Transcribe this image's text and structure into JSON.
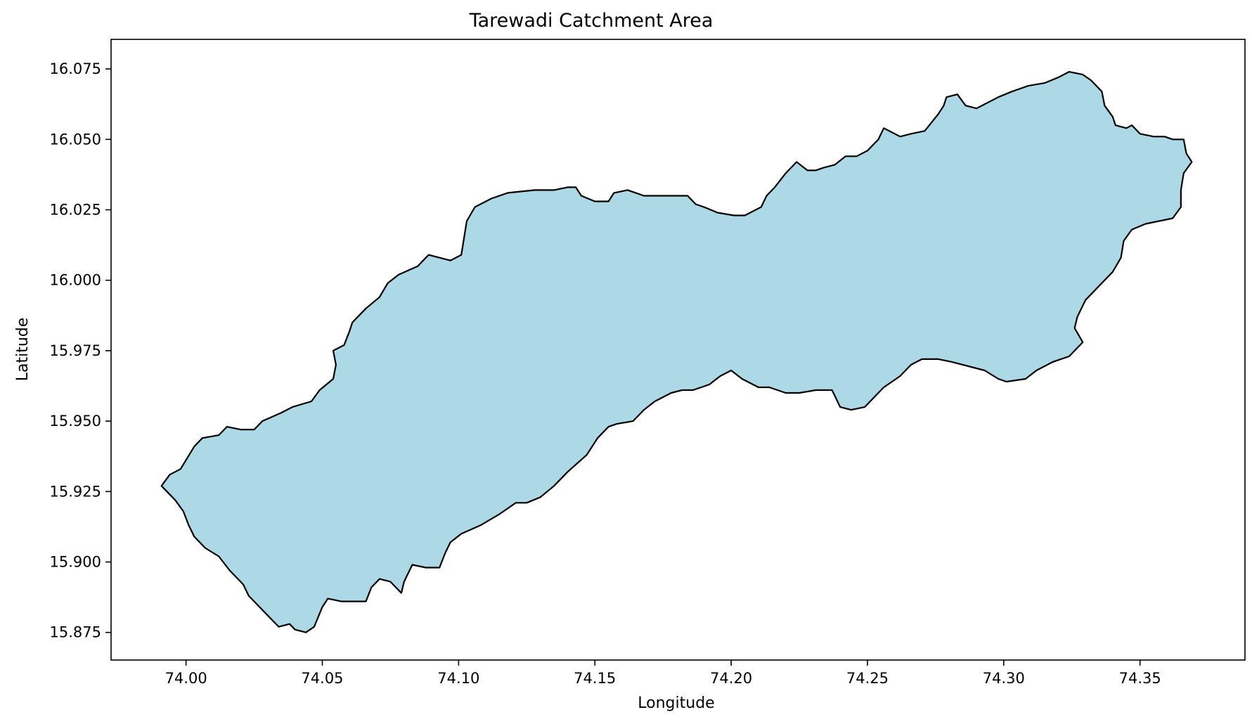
{
  "chart_data": {
    "type": "map",
    "title": "Tarewadi Catchment Area",
    "xlabel": "Longitude",
    "ylabel": "Latitude",
    "xlim": [
      73.9725,
      74.3885
    ],
    "ylim": [
      15.8652,
      16.0855
    ],
    "x_ticks": [
      "74.00",
      "74.05",
      "74.10",
      "74.15",
      "74.20",
      "74.25",
      "74.30",
      "74.35"
    ],
    "x_tick_values": [
      74.0,
      74.05,
      74.1,
      74.15,
      74.2,
      74.25,
      74.3,
      74.35
    ],
    "y_ticks": [
      "15.875",
      "15.900",
      "15.925",
      "15.950",
      "15.975",
      "16.000",
      "16.025",
      "16.050",
      "16.075"
    ],
    "y_tick_values": [
      15.875,
      15.9,
      15.925,
      15.95,
      15.975,
      16.0,
      16.025,
      16.05,
      16.075
    ],
    "grid": false,
    "fill_color": "#add8e6",
    "edge_color": "#000000",
    "boundary": [
      [
        73.991,
        15.927
      ],
      [
        73.994,
        15.931
      ],
      [
        73.998,
        15.933
      ],
      [
        74.003,
        15.941
      ],
      [
        74.006,
        15.944
      ],
      [
        74.012,
        15.945
      ],
      [
        74.015,
        15.948
      ],
      [
        74.02,
        15.947
      ],
      [
        74.025,
        15.947
      ],
      [
        74.028,
        15.95
      ],
      [
        74.035,
        15.953
      ],
      [
        74.039,
        15.955
      ],
      [
        74.046,
        15.957
      ],
      [
        74.049,
        15.961
      ],
      [
        74.054,
        15.965
      ],
      [
        74.055,
        15.97
      ],
      [
        74.054,
        15.975
      ],
      [
        74.058,
        15.977
      ],
      [
        74.06,
        15.982
      ],
      [
        74.061,
        15.985
      ],
      [
        74.066,
        15.99
      ],
      [
        74.071,
        15.994
      ],
      [
        74.074,
        15.999
      ],
      [
        74.078,
        16.002
      ],
      [
        74.085,
        16.005
      ],
      [
        74.089,
        16.009
      ],
      [
        74.093,
        16.008
      ],
      [
        74.097,
        16.007
      ],
      [
        74.101,
        16.009
      ],
      [
        74.102,
        16.015
      ],
      [
        74.103,
        16.021
      ],
      [
        74.106,
        16.026
      ],
      [
        74.112,
        16.029
      ],
      [
        74.118,
        16.031
      ],
      [
        74.128,
        16.032
      ],
      [
        74.135,
        16.032
      ],
      [
        74.14,
        16.033
      ],
      [
        74.143,
        16.033
      ],
      [
        74.145,
        16.03
      ],
      [
        74.15,
        16.028
      ],
      [
        74.155,
        16.028
      ],
      [
        74.157,
        16.031
      ],
      [
        74.162,
        16.032
      ],
      [
        74.165,
        16.031
      ],
      [
        74.168,
        16.03
      ],
      [
        74.173,
        16.03
      ],
      [
        74.18,
        16.03
      ],
      [
        74.184,
        16.03
      ],
      [
        74.187,
        16.027
      ],
      [
        74.19,
        16.026
      ],
      [
        74.195,
        16.024
      ],
      [
        74.201,
        16.023
      ],
      [
        74.205,
        16.023
      ],
      [
        74.211,
        16.026
      ],
      [
        74.213,
        16.03
      ],
      [
        74.216,
        16.033
      ],
      [
        74.22,
        16.038
      ],
      [
        74.224,
        16.042
      ],
      [
        74.228,
        16.039
      ],
      [
        74.231,
        16.039
      ],
      [
        74.234,
        16.04
      ],
      [
        74.238,
        16.041
      ],
      [
        74.242,
        16.044
      ],
      [
        74.246,
        16.044
      ],
      [
        74.25,
        16.046
      ],
      [
        74.254,
        16.05
      ],
      [
        74.256,
        16.054
      ],
      [
        74.262,
        16.051
      ],
      [
        74.266,
        16.052
      ],
      [
        74.271,
        16.053
      ],
      [
        74.276,
        16.059
      ],
      [
        74.278,
        16.062
      ],
      [
        74.279,
        16.065
      ],
      [
        74.283,
        16.066
      ],
      [
        74.286,
        16.062
      ],
      [
        74.29,
        16.061
      ],
      [
        74.294,
        16.063
      ],
      [
        74.298,
        16.065
      ],
      [
        74.303,
        16.067
      ],
      [
        74.309,
        16.069
      ],
      [
        74.315,
        16.07
      ],
      [
        74.32,
        16.072
      ],
      [
        74.324,
        16.074
      ],
      [
        74.329,
        16.073
      ],
      [
        74.332,
        16.071
      ],
      [
        74.336,
        16.067
      ],
      [
        74.337,
        16.062
      ],
      [
        74.34,
        16.058
      ],
      [
        74.341,
        16.055
      ],
      [
        74.345,
        16.054
      ],
      [
        74.347,
        16.055
      ],
      [
        74.35,
        16.052
      ],
      [
        74.355,
        16.051
      ],
      [
        74.359,
        16.051
      ],
      [
        74.362,
        16.05
      ],
      [
        74.366,
        16.05
      ],
      [
        74.367,
        16.045
      ],
      [
        74.369,
        16.042
      ],
      [
        74.366,
        16.038
      ],
      [
        74.365,
        16.032
      ],
      [
        74.365,
        16.026
      ],
      [
        74.362,
        16.022
      ],
      [
        74.357,
        16.021
      ],
      [
        74.352,
        16.02
      ],
      [
        74.347,
        16.018
      ],
      [
        74.344,
        16.014
      ],
      [
        74.343,
        16.008
      ],
      [
        74.34,
        16.003
      ],
      [
        74.335,
        15.998
      ],
      [
        74.33,
        15.993
      ],
      [
        74.327,
        15.987
      ],
      [
        74.326,
        15.983
      ],
      [
        74.329,
        15.978
      ],
      [
        74.324,
        15.973
      ],
      [
        74.318,
        15.971
      ],
      [
        74.312,
        15.968
      ],
      [
        74.308,
        15.965
      ],
      [
        74.301,
        15.964
      ],
      [
        74.298,
        15.965
      ],
      [
        74.293,
        15.968
      ],
      [
        74.289,
        15.969
      ],
      [
        74.281,
        15.971
      ],
      [
        74.276,
        15.972
      ],
      [
        74.27,
        15.972
      ],
      [
        74.266,
        15.97
      ],
      [
        74.262,
        15.966
      ],
      [
        74.256,
        15.962
      ],
      [
        74.252,
        15.958
      ],
      [
        74.249,
        15.955
      ],
      [
        74.244,
        15.954
      ],
      [
        74.24,
        15.955
      ],
      [
        74.237,
        15.961
      ],
      [
        74.231,
        15.961
      ],
      [
        74.225,
        15.96
      ],
      [
        74.22,
        15.96
      ],
      [
        74.214,
        15.962
      ],
      [
        74.21,
        15.962
      ],
      [
        74.204,
        15.965
      ],
      [
        74.2,
        15.968
      ],
      [
        74.196,
        15.966
      ],
      [
        74.192,
        15.963
      ],
      [
        74.186,
        15.961
      ],
      [
        74.182,
        15.961
      ],
      [
        74.178,
        15.96
      ],
      [
        74.172,
        15.957
      ],
      [
        74.168,
        15.954
      ],
      [
        74.164,
        15.95
      ],
      [
        74.158,
        15.949
      ],
      [
        74.155,
        15.948
      ],
      [
        74.151,
        15.944
      ],
      [
        74.147,
        15.938
      ],
      [
        74.14,
        15.932
      ],
      [
        74.135,
        15.927
      ],
      [
        74.13,
        15.923
      ],
      [
        74.125,
        15.921
      ],
      [
        74.121,
        15.921
      ],
      [
        74.115,
        15.917
      ],
      [
        74.108,
        15.913
      ],
      [
        74.101,
        15.91
      ],
      [
        74.097,
        15.907
      ],
      [
        74.095,
        15.903
      ],
      [
        74.093,
        15.898
      ],
      [
        74.088,
        15.898
      ],
      [
        74.083,
        15.899
      ],
      [
        74.08,
        15.893
      ],
      [
        74.079,
        15.889
      ],
      [
        74.075,
        15.893
      ],
      [
        74.071,
        15.894
      ],
      [
        74.068,
        15.891
      ],
      [
        74.066,
        15.886
      ],
      [
        74.063,
        15.886
      ],
      [
        74.057,
        15.886
      ],
      [
        74.052,
        15.887
      ],
      [
        74.05,
        15.884
      ],
      [
        74.047,
        15.877
      ],
      [
        74.044,
        15.875
      ],
      [
        74.04,
        15.876
      ],
      [
        74.038,
        15.878
      ],
      [
        74.034,
        15.877
      ],
      [
        74.031,
        15.88
      ],
      [
        74.027,
        15.884
      ],
      [
        74.023,
        15.888
      ],
      [
        74.021,
        15.892
      ],
      [
        74.016,
        15.897
      ],
      [
        74.012,
        15.902
      ],
      [
        74.007,
        15.905
      ],
      [
        74.003,
        15.909
      ],
      [
        74.001,
        15.913
      ],
      [
        73.999,
        15.918
      ],
      [
        73.996,
        15.922
      ]
    ]
  }
}
